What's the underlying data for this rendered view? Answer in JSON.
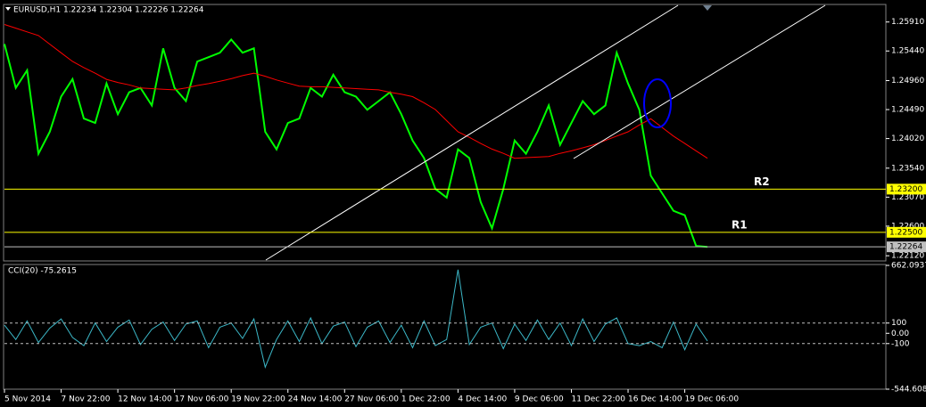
{
  "chart_data": [
    {
      "type": "line",
      "title": "EURUSD,H1 1.22234 1.22304 1.22226 1.22264",
      "categories": [
        "5 Nov 2014",
        null,
        null,
        null,
        null,
        "7 Nov 22:00",
        null,
        null,
        null,
        null,
        "12 Nov 14:00",
        null,
        null,
        null,
        null,
        "17 Nov 06:00",
        null,
        null,
        null,
        null,
        "19 Nov 22:00",
        null,
        null,
        null,
        null,
        "24 Nov 14:00",
        null,
        null,
        null,
        null,
        "27 Nov 06:00",
        null,
        null,
        null,
        null,
        "1 Dec 22:00",
        null,
        null,
        null,
        null,
        "4 Dec 14:00",
        null,
        null,
        null,
        null,
        "9 Dec 06:00",
        null,
        null,
        null,
        null,
        "11 Dec 22:00",
        null,
        null,
        null,
        null,
        "16 Dec 14:00",
        null,
        null,
        null,
        null,
        "19 Dec 06:00",
        null,
        null
      ],
      "series": [
        {
          "color": "#00ff00",
          "values": [
            1.25554,
            1.24842,
            1.25127,
            1.23774,
            1.2413,
            1.247,
            1.24984,
            1.24344,
            1.24272,
            1.24913,
            1.24415,
            1.24771,
            1.24842,
            1.24557,
            1.25483,
            1.24842,
            1.24628,
            1.25269,
            1.2534,
            1.25412,
            1.25625,
            1.25412,
            1.25483,
            1.2413,
            1.23845,
            1.24272,
            1.24344,
            1.24842,
            1.247,
            1.25055,
            1.24771,
            1.247,
            1.24486,
            1.24628,
            1.24771,
            1.24415,
            1.23988,
            1.23703,
            1.23204,
            1.23062,
            1.23845,
            1.23703,
            1.22991,
            1.22564,
            1.23204,
            1.23988,
            1.23774,
            1.2413,
            1.24557,
            1.23917,
            1.24272,
            1.24628,
            1.24415,
            1.24557,
            1.25412,
            1.24913,
            1.24486,
            1.23418,
            1.23133,
            1.22848,
            1.22777,
            1.22279,
            1.22264
          ]
        },
        {
          "color": "#ff0000",
          "values": [
            1.2587,
            1.2581,
            1.2575,
            1.2569,
            1.2555,
            1.2541,
            1.2527,
            1.2517,
            1.2508,
            1.2498,
            1.2493,
            1.2489,
            1.2484,
            1.2483,
            1.2482,
            1.2481,
            1.2484,
            1.2488,
            1.2491,
            1.2495,
            1.2499,
            1.2504,
            1.2508,
            1.2503,
            1.2497,
            1.2492,
            1.2487,
            1.2486,
            1.2486,
            1.2485,
            1.2484,
            1.2483,
            1.2482,
            1.2481,
            1.2477,
            1.2474,
            1.247,
            1.246,
            1.2449,
            1.2431,
            1.2413,
            1.2404,
            1.2394,
            1.2385,
            1.2378,
            1.237,
            1.2371,
            1.2372,
            1.2373,
            1.2378,
            1.2382,
            1.2387,
            1.2392,
            1.2399,
            1.2406,
            1.2413,
            1.2424,
            1.2434,
            1.242,
            1.2406,
            1.2394,
            1.2382,
            1.237
          ]
        }
      ],
      "ylim": [
        1.2205,
        1.2618
      ],
      "yticks": [
        {
          "value": 1.2591,
          "label": "1.25910"
        },
        {
          "value": 1.2544,
          "label": "1.25440"
        },
        {
          "value": 1.2496,
          "label": "1.24960"
        },
        {
          "value": 1.2449,
          "label": "1.24490"
        },
        {
          "value": 1.2402,
          "label": "1.24020"
        },
        {
          "value": 1.2354,
          "label": "1.23540"
        },
        {
          "value": 1.2307,
          "label": "1.23070"
        },
        {
          "value": 1.226,
          "label": "1.22600"
        },
        {
          "value": 1.2212,
          "label": "1.22120"
        }
      ],
      "levels": [
        {
          "name": "R2",
          "value": 1.232,
          "label": "1.23200",
          "color": "#ffff00"
        },
        {
          "name": "R1",
          "value": 1.225,
          "label": "1.22500",
          "color": "#ffff00"
        }
      ],
      "last_price": {
        "value": 1.22264,
        "label": "1.22264",
        "color": "#c0c0c0"
      }
    },
    {
      "type": "line",
      "title": "CCI(20) -75.2615",
      "series": [
        {
          "color": "#3cb8c8",
          "values": [
            80,
            -60,
            120,
            -90,
            50,
            140,
            -40,
            -120,
            100,
            -80,
            60,
            130,
            -110,
            40,
            110,
            -70,
            90,
            120,
            -140,
            60,
            100,
            -50,
            140,
            -330,
            -60,
            120,
            -80,
            150,
            -100,
            70,
            110,
            -130,
            60,
            120,
            -90,
            80,
            -140,
            120,
            -120,
            -60,
            620,
            -110,
            60,
            100,
            -150,
            90,
            -70,
            130,
            -60,
            100,
            -120,
            140,
            -80,
            90,
            150,
            -100,
            -120,
            -80,
            -140,
            110,
            -160,
            90,
            -75.2615
          ]
        }
      ],
      "ylim": [
        -544.6083,
        662.0937
      ],
      "yticks": [
        662.0937,
        100,
        {
          "value": 0,
          "label": "0.00"
        },
        -100,
        -544.6083
      ],
      "level_lines": [
        100,
        -100
      ]
    }
  ]
}
